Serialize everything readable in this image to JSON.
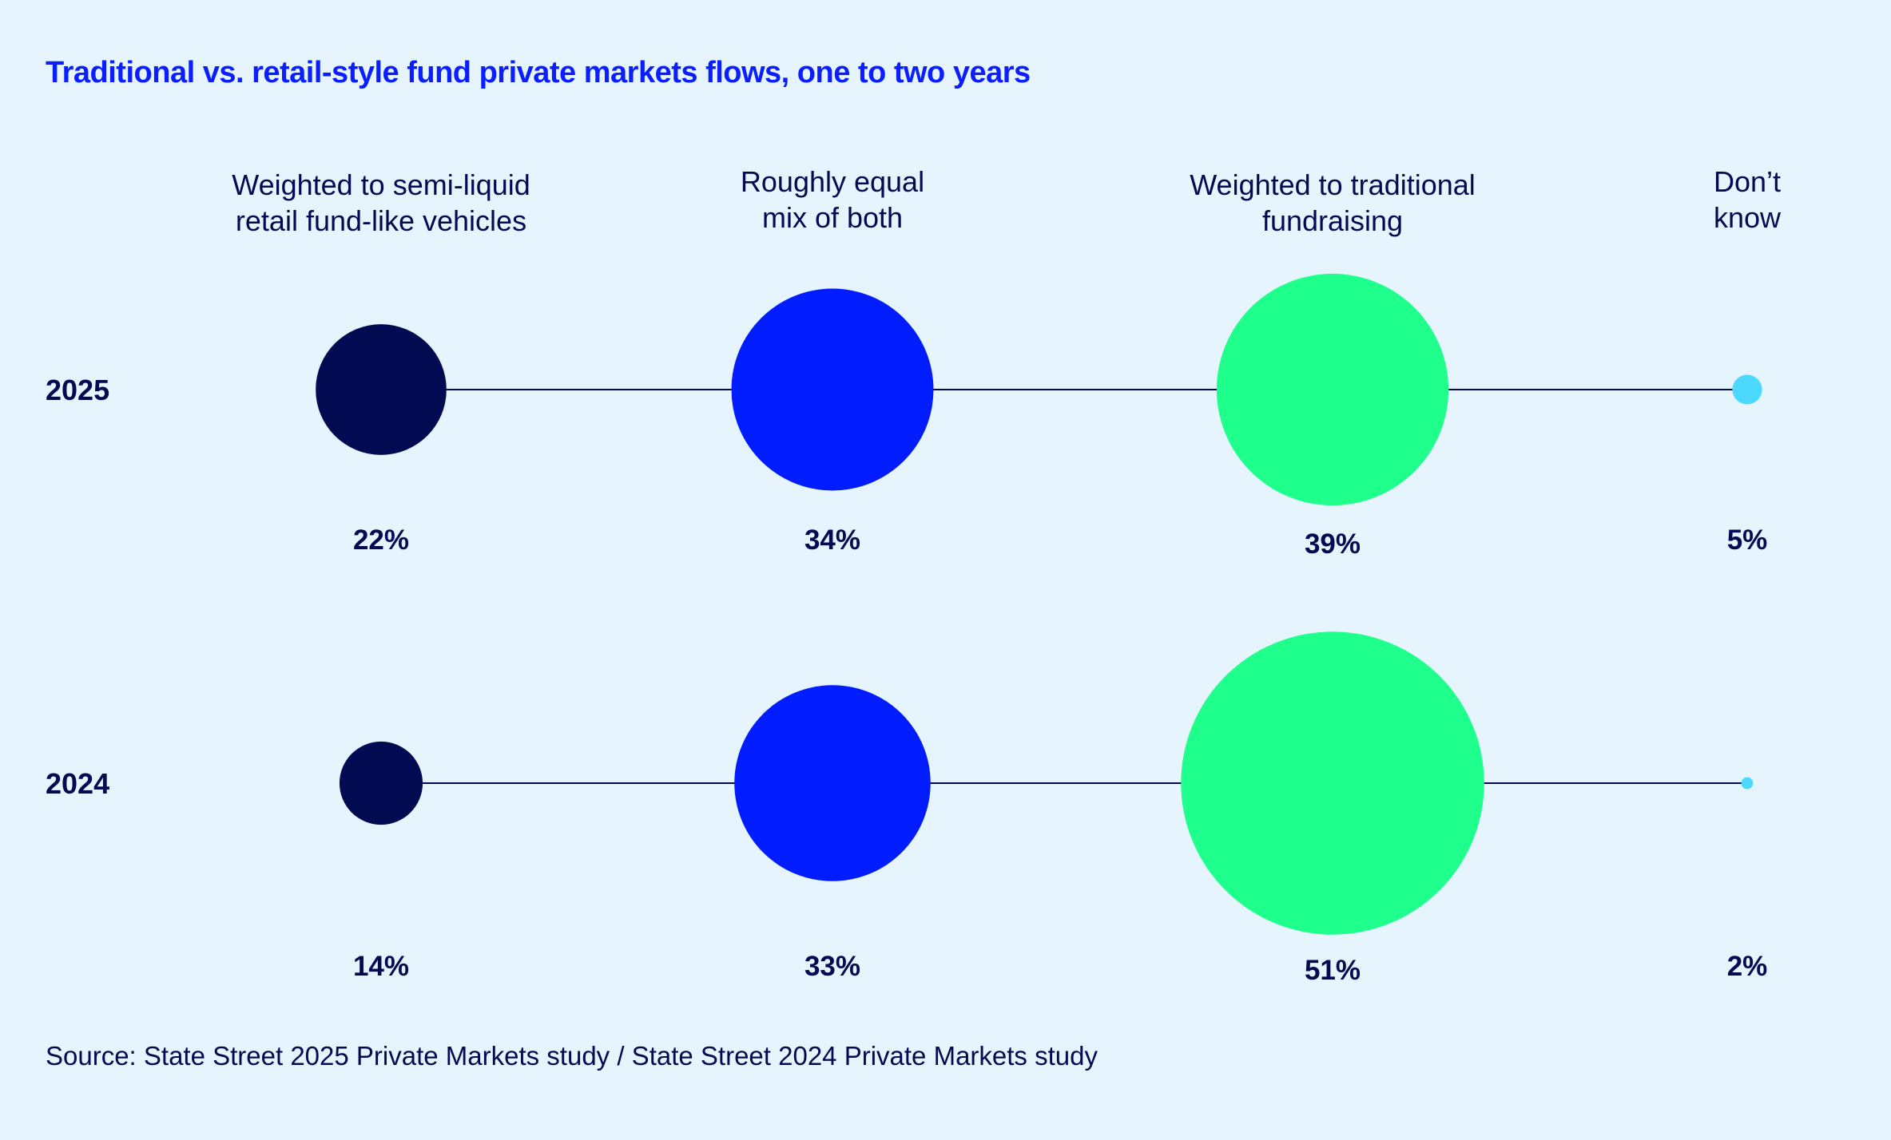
{
  "title": "Traditional vs. retail-style fund private markets flows, one to two years",
  "source": "Source: State Street 2025 Private Markets study / State Street 2024 Private Markets study",
  "chart_data": {
    "type": "bubble",
    "title": "Traditional vs. retail-style fund private markets flows, one to two years",
    "categories": [
      [
        "Weighted to semi-liquid",
        "retail fund-like vehicles"
      ],
      [
        "Roughly equal",
        "mix of both"
      ],
      [
        "Weighted to traditional",
        "fundraising"
      ],
      [
        "Don’t",
        "know"
      ]
    ],
    "colors": [
      "#020b52",
      "#001cff",
      "#1eff8c",
      "#4dd8ff"
    ],
    "line_color": "#020b52",
    "series": [
      {
        "name": "2025",
        "values": [
          22,
          34,
          39,
          5
        ],
        "labels": [
          "22%",
          "34%",
          "39%",
          "5%"
        ]
      },
      {
        "name": "2024",
        "values": [
          14,
          33,
          51,
          2
        ],
        "labels": [
          "14%",
          "33%",
          "51%",
          "2%"
        ]
      }
    ],
    "unit": "%"
  }
}
